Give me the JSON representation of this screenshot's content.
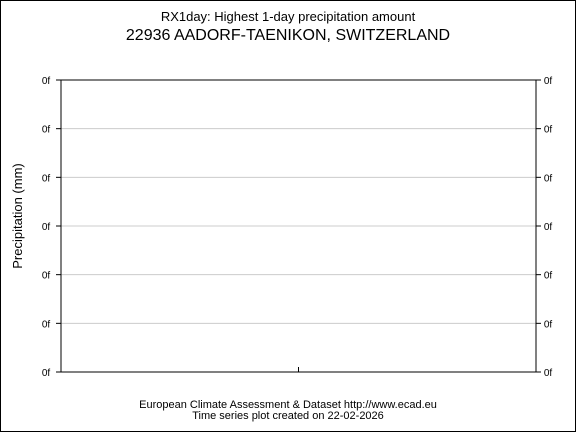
{
  "header": {
    "title": "RX1day: Highest 1-day precipitation amount",
    "subtitle": "22936 AADORF-TAENIKON, SWITZERLAND"
  },
  "footer": {
    "line1": "European Climate Assessment & Dataset  http://www.ecad.eu",
    "line2": "Time series plot created on 22-02-2026"
  },
  "chart_data": {
    "type": "line",
    "title": "RX1day: Highest 1-day precipitation amount",
    "subtitle": "22936 AADORF-TAENIKON, SWITZERLAND",
    "xlabel": "",
    "ylabel": "Precipitation (mm)",
    "y_tick_labels": [
      "0f",
      "0f",
      "0f",
      "0f",
      "0f",
      "0f",
      "0f"
    ],
    "y_ticks_both_sides": true,
    "x_tick_labels": [],
    "series": [],
    "grid": true,
    "legend": "none",
    "colors": {
      "axis": "#000000",
      "grid": "#cccccc"
    }
  }
}
